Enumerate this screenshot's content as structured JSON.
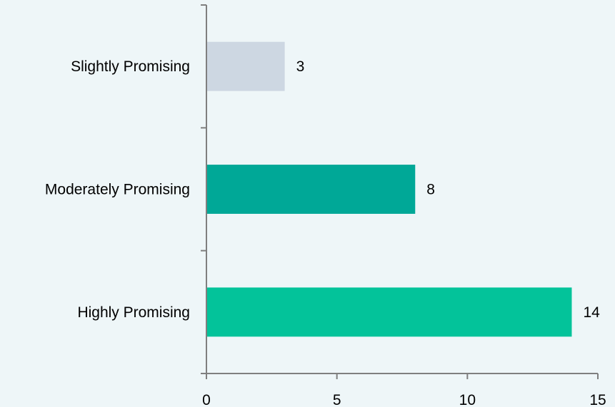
{
  "chart_data": {
    "type": "bar",
    "orientation": "horizontal",
    "categories": [
      "Highly Promising",
      "Moderately Promising",
      "Slightly Promising"
    ],
    "values": [
      14,
      8,
      3
    ],
    "bar_colors": [
      "#03c39a",
      "#00a897",
      "#cdd7e2"
    ],
    "title": "",
    "xlabel": "",
    "ylabel": "",
    "xlim": [
      0,
      15
    ],
    "x_ticks": [
      "0",
      "5",
      "10",
      "15"
    ],
    "grid": false,
    "legend": "none",
    "data_labels": [
      "14",
      "8",
      "3"
    ]
  }
}
